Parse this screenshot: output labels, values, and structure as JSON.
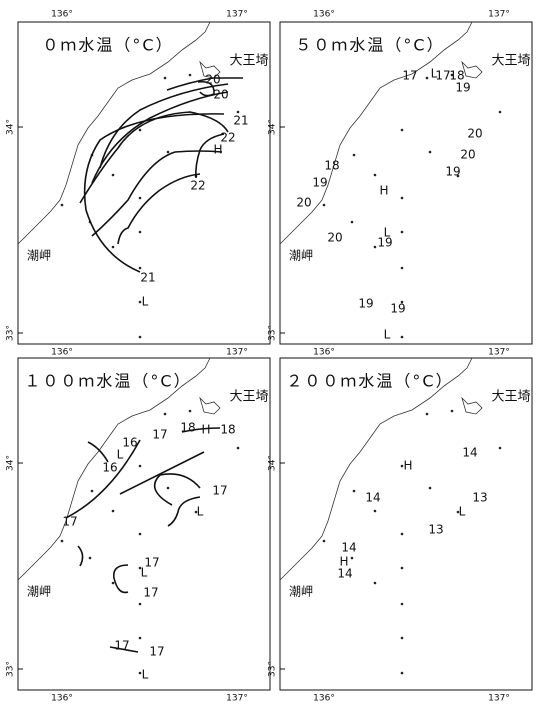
{
  "panels": [
    {
      "title": "０ｍ水温（°C）",
      "lon_labels_top": [
        "136°",
        "137°"
      ],
      "lon_labels_bottom": [
        "136°",
        "137°"
      ],
      "lat_labels": [
        "34°",
        "33°"
      ],
      "places": [
        "大王埼",
        "潮岬"
      ],
      "labels": [
        "20",
        "20",
        "21",
        "22",
        "H",
        "22",
        "21",
        "L"
      ]
    },
    {
      "title": "５０ｍ水温（°C）",
      "lon_labels_top": [
        "136°",
        "137°"
      ],
      "lon_labels_bottom": [
        "136°",
        "137°"
      ],
      "lat_labels": [
        "34°",
        "33°"
      ],
      "places": [
        "大王埼",
        "潮岬"
      ],
      "labels": [
        "17",
        "L",
        "17",
        "18",
        "19",
        "20",
        "20",
        "19",
        "H",
        "18",
        "19",
        "20",
        "20",
        "L",
        "19",
        "19",
        "19",
        "L"
      ]
    },
    {
      "title": "１００ｍ水温（°C）",
      "lon_labels_bottom": [
        "136°",
        "137°"
      ],
      "lat_labels": [
        "34°",
        "33°"
      ],
      "places": [
        "大王埼",
        "潮岬"
      ],
      "labels": [
        "16",
        "L",
        "16",
        "17",
        "17",
        "18",
        "H",
        "18",
        "17",
        "L",
        "17",
        "L",
        "17",
        "17",
        "17",
        "L"
      ]
    },
    {
      "title": "２００ｍ水温（°C）",
      "lon_labels_bottom": [
        "136°",
        "137°"
      ],
      "lat_labels": [
        "34°",
        "33°"
      ],
      "places": [
        "大王埼",
        "潮岬"
      ],
      "labels": [
        "14",
        "H",
        "14",
        "13",
        "L",
        "13",
        "14",
        "H",
        "14"
      ]
    }
  ]
}
